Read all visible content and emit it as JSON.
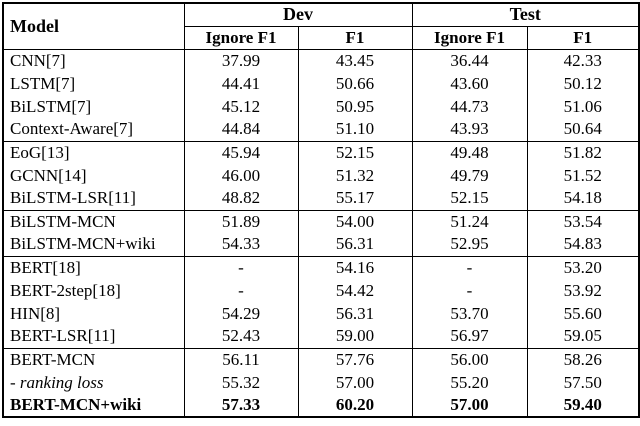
{
  "table": {
    "header": {
      "model": "Model",
      "groups": [
        {
          "label": "Dev"
        },
        {
          "label": "Test"
        }
      ],
      "subcols": [
        "Ignore F1",
        "F1",
        "Ignore F1",
        "F1"
      ]
    },
    "row_groups": [
      {
        "rows": [
          {
            "model": "CNN[7]",
            "values": [
              "37.99",
              "43.45",
              "36.44",
              "42.33"
            ]
          },
          {
            "model": "LSTM[7]",
            "values": [
              "44.41",
              "50.66",
              "43.60",
              "50.12"
            ]
          },
          {
            "model": "BiLSTM[7]",
            "values": [
              "45.12",
              "50.95",
              "44.73",
              "51.06"
            ]
          },
          {
            "model": "Context-Aware[7]",
            "values": [
              "44.84",
              "51.10",
              "43.93",
              "50.64"
            ]
          }
        ]
      },
      {
        "rows": [
          {
            "model": "EoG[13]",
            "values": [
              "45.94",
              "52.15",
              "49.48",
              "51.82"
            ]
          },
          {
            "model": "GCNN[14]",
            "values": [
              "46.00",
              "51.32",
              "49.79",
              "51.52"
            ]
          },
          {
            "model": "BiLSTM-LSR[11]",
            "values": [
              "48.82",
              "55.17",
              "52.15",
              "54.18"
            ]
          }
        ]
      },
      {
        "rows": [
          {
            "model": "BiLSTM-MCN",
            "values": [
              "51.89",
              "54.00",
              "51.24",
              "53.54"
            ]
          },
          {
            "model": "BiLSTM-MCN+wiki",
            "values": [
              "54.33",
              "56.31",
              "52.95",
              "54.83"
            ]
          }
        ]
      },
      {
        "rows": [
          {
            "model": "BERT[18]",
            "values": [
              "-",
              "54.16",
              "-",
              "53.20"
            ]
          },
          {
            "model": "BERT-2step[18]",
            "values": [
              "-",
              "54.42",
              "-",
              "53.92"
            ]
          },
          {
            "model": "HIN[8]",
            "values": [
              "54.29",
              "56.31",
              "53.70",
              "55.60"
            ]
          },
          {
            "model": "BERT-LSR[11]",
            "values": [
              "52.43",
              "59.00",
              "56.97",
              "59.05"
            ]
          }
        ]
      },
      {
        "rows": [
          {
            "model": "BERT-MCN",
            "values": [
              "56.11",
              "57.76",
              "56.00",
              "58.26"
            ]
          },
          {
            "model": "- ranking loss",
            "values": [
              "55.32",
              "57.00",
              "55.20",
              "57.50"
            ],
            "italic": true
          },
          {
            "model": "BERT-MCN+wiki",
            "values": [
              "57.33",
              "60.20",
              "57.00",
              "59.40"
            ],
            "bold": true
          }
        ]
      }
    ]
  },
  "chart_data": {
    "type": "table",
    "columns": [
      "Model",
      "Dev Ignore F1",
      "Dev F1",
      "Test Ignore F1",
      "Test F1"
    ],
    "rows": [
      [
        "CNN[7]",
        37.99,
        43.45,
        36.44,
        42.33
      ],
      [
        "LSTM[7]",
        44.41,
        50.66,
        43.6,
        50.12
      ],
      [
        "BiLSTM[7]",
        45.12,
        50.95,
        44.73,
        51.06
      ],
      [
        "Context-Aware[7]",
        44.84,
        51.1,
        43.93,
        50.64
      ],
      [
        "EoG[13]",
        45.94,
        52.15,
        49.48,
        51.82
      ],
      [
        "GCNN[14]",
        46.0,
        51.32,
        49.79,
        51.52
      ],
      [
        "BiLSTM-LSR[11]",
        48.82,
        55.17,
        52.15,
        54.18
      ],
      [
        "BiLSTM-MCN",
        51.89,
        54.0,
        51.24,
        53.54
      ],
      [
        "BiLSTM-MCN+wiki",
        54.33,
        56.31,
        52.95,
        54.83
      ],
      [
        "BERT[18]",
        null,
        54.16,
        null,
        53.2
      ],
      [
        "BERT-2step[18]",
        null,
        54.42,
        null,
        53.92
      ],
      [
        "HIN[8]",
        54.29,
        56.31,
        53.7,
        55.6
      ],
      [
        "BERT-LSR[11]",
        52.43,
        59.0,
        56.97,
        59.05
      ],
      [
        "BERT-MCN",
        56.11,
        57.76,
        56.0,
        58.26
      ],
      [
        "- ranking loss",
        55.32,
        57.0,
        55.2,
        57.5
      ],
      [
        "BERT-MCN+wiki",
        57.33,
        60.2,
        57.0,
        59.4
      ]
    ]
  }
}
